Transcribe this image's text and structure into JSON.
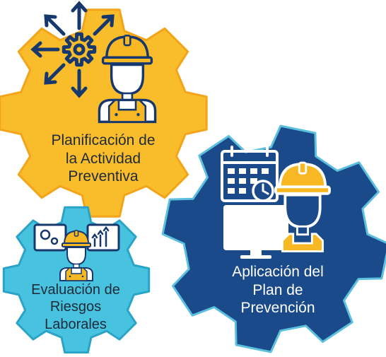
{
  "gears": {
    "planificacion": {
      "lines": [
        "Planificación de",
        "la Actividad",
        "Preventiva"
      ],
      "color": "#f9bd2c",
      "outline": "#f3a41b",
      "icon": "gear-with-arrows-icon"
    },
    "aplicacion": {
      "lines": [
        "Aplicación del",
        "Plan de",
        "Prevención"
      ],
      "color": "#1a4a8a",
      "outline": "#5bbfde",
      "icon": "calendar-monitor-icon"
    },
    "evaluacion": {
      "lines": [
        "Evaluación de",
        "Riesgos",
        "Laborales"
      ],
      "color": "#48c3df",
      "outline": "#2aa3c9",
      "icon": "analytics-monitors-icon"
    }
  },
  "colors": {
    "navy": "#17386d",
    "helmet": "#f7b824",
    "white": "#ffffff"
  }
}
